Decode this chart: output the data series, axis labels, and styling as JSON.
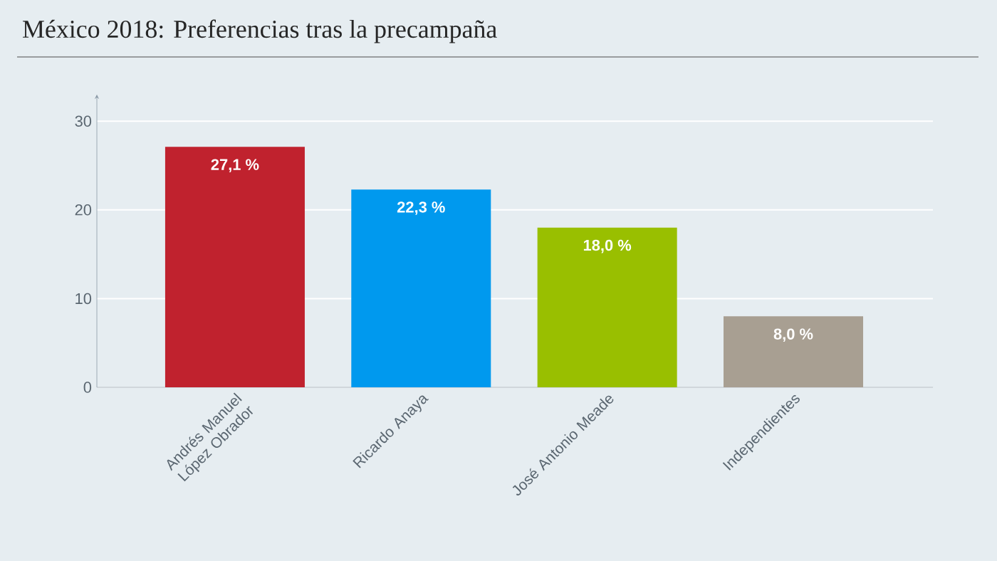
{
  "chart_data": {
    "type": "bar",
    "title": "México 2018: Preferencias tras la precampaña",
    "categories": [
      "Andrés Manuel López Obrador",
      "Ricardo Anaya",
      "José Antonio Meade",
      "Independientes"
    ],
    "values": [
      27.1,
      22.3,
      18.0,
      8.0
    ],
    "colors": [
      "#c0222e",
      "#0099ee",
      "#99bf00",
      "#a89f92"
    ],
    "value_labels": [
      "27,1 %",
      "22,3 %",
      "18,0 %",
      "8,0 %"
    ],
    "ylim": [
      0,
      33
    ],
    "yticks": [
      0,
      10,
      20,
      30
    ],
    "grid": "y"
  }
}
